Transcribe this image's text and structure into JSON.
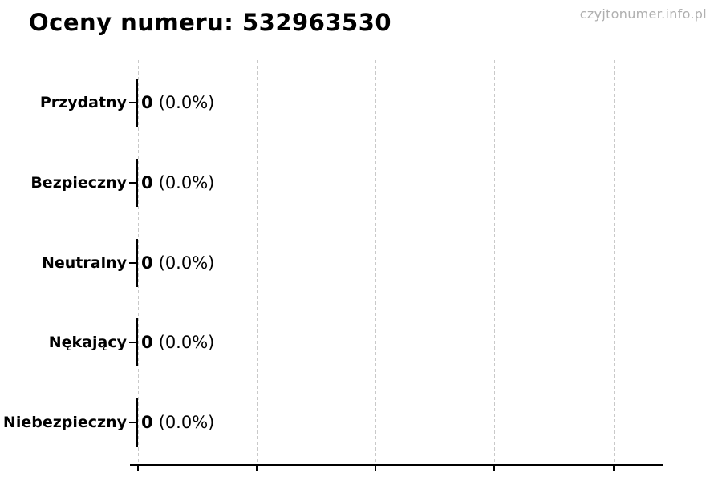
{
  "page": {
    "title": "Oceny numeru: 532963530",
    "watermark": "czyjtonumer.info.pl"
  },
  "chart_data": {
    "type": "bar",
    "orientation": "horizontal",
    "title": "Oceny numeru: 532963530",
    "categories": [
      "Przydatny",
      "Bezpieczny",
      "Neutralny",
      "Nękający",
      "Niebezpieczny"
    ],
    "values": [
      0,
      0,
      0,
      0,
      0
    ],
    "percentages": [
      0.0,
      0.0,
      0.0,
      0.0,
      0.0
    ],
    "rows": [
      {
        "label": "Przydatny",
        "count": "0",
        "percent": "(0.0%)"
      },
      {
        "label": "Bezpieczny",
        "count": "0",
        "percent": "(0.0%)"
      },
      {
        "label": "Neutralny",
        "count": "0",
        "percent": "(0.0%)"
      },
      {
        "label": "Nękający",
        "count": "0",
        "percent": "(0.0%)"
      },
      {
        "label": "Niebezpieczny",
        "count": "0",
        "percent": "(0.0%)"
      }
    ],
    "xlabel": "",
    "ylabel": "",
    "x_tick_labels_visible": false,
    "n_vertical_gridlines": 5,
    "grid": "vertical-dashed",
    "legend": "none"
  },
  "colors": {
    "background": "#ffffff",
    "text": "#000000",
    "bar_edge": "#000000",
    "grid": "#c9c9c9",
    "axis": "#000000",
    "watermark": "#b0b0b0"
  }
}
